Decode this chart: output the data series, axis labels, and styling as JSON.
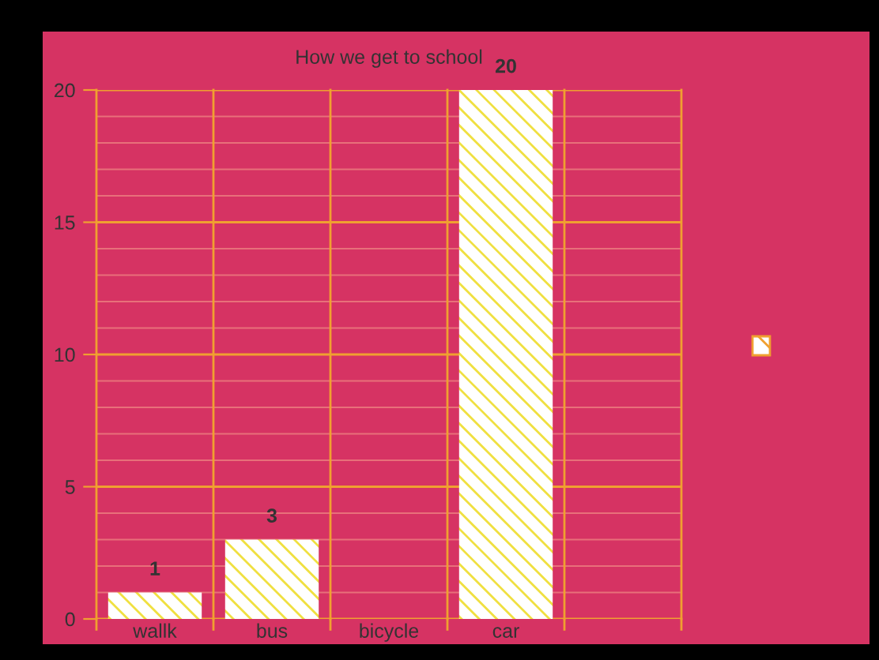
{
  "chart_data": {
    "type": "bar",
    "title": "How we get to school",
    "categories": [
      "wallk",
      "bus",
      "bicycle",
      "car",
      null
    ],
    "series": [
      {
        "color": "#ffffff",
        "values": [
          1,
          3,
          0,
          20,
          null
        ],
        "value_labels": [
          "1",
          "3",
          null,
          "20",
          null
        ]
      }
    ],
    "ylim": [
      0,
      20
    ],
    "yticks": [
      0,
      {
        "value": 1,
        "label": null
      },
      {
        "value": 2,
        "label": null
      },
      {
        "value": 3,
        "label": null
      },
      {
        "value": 4,
        "label": null
      },
      5,
      {
        "value": 6,
        "label": null
      },
      {
        "value": 7,
        "label": null
      },
      {
        "value": 8,
        "label": null
      },
      {
        "value": 9,
        "label": null
      },
      10,
      {
        "value": 11,
        "label": null
      },
      {
        "value": 12,
        "label": null
      },
      {
        "value": 13,
        "label": null
      },
      {
        "value": 14,
        "label": null
      },
      15,
      {
        "value": 16,
        "label": null
      },
      {
        "value": 17,
        "label": null
      },
      {
        "value": 18,
        "label": null
      },
      {
        "value": 19,
        "label": null
      },
      20
    ],
    "grid": true
  }
}
